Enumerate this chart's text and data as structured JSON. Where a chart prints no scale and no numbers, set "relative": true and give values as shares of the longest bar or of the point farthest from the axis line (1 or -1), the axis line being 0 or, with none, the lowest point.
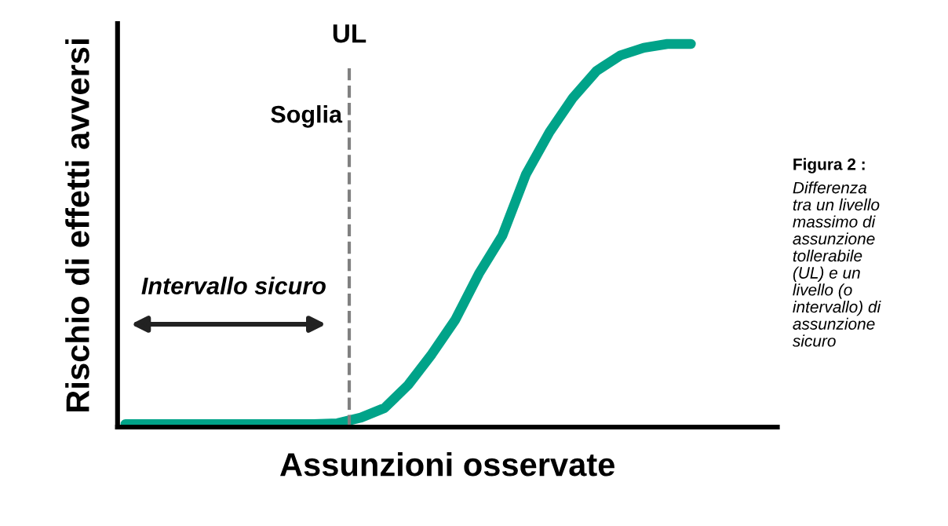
{
  "chart_data": {
    "type": "line",
    "relative": true,
    "xlabel": "Assunzioni osservate",
    "ylabel": "Rischio di effetti avversi",
    "categories": [
      null,
      null,
      null,
      null,
      null,
      null,
      null,
      null,
      null,
      null,
      null,
      null,
      null,
      null,
      null,
      null,
      null,
      null,
      null,
      null,
      null,
      null,
      null,
      null,
      null
    ],
    "series": [
      {
        "color": "#00a389",
        "values": [
          0.008,
          0.008,
          0.008,
          0.008,
          0.008,
          0.008,
          0.008,
          0.008,
          0.008,
          0.01,
          0.025,
          0.05,
          0.11,
          0.19,
          0.28,
          0.4,
          0.5,
          0.66,
          0.77,
          0.86,
          0.93,
          0.97,
          0.99,
          1,
          1
        ]
      }
    ],
    "annotations": [
      "UL",
      "Soglia",
      "Intervallo sicuro",
      "Figura 2 :",
      "Differenza\ntra un livello\nmassimo di\nassunzione\ntollerabile\n(UL) e un\nlivello (o\nintervallo) di\nassunzione\nsicuro"
    ],
    "grid": false,
    "legend": false,
    "marker": "none",
    "line_style": "solid"
  }
}
